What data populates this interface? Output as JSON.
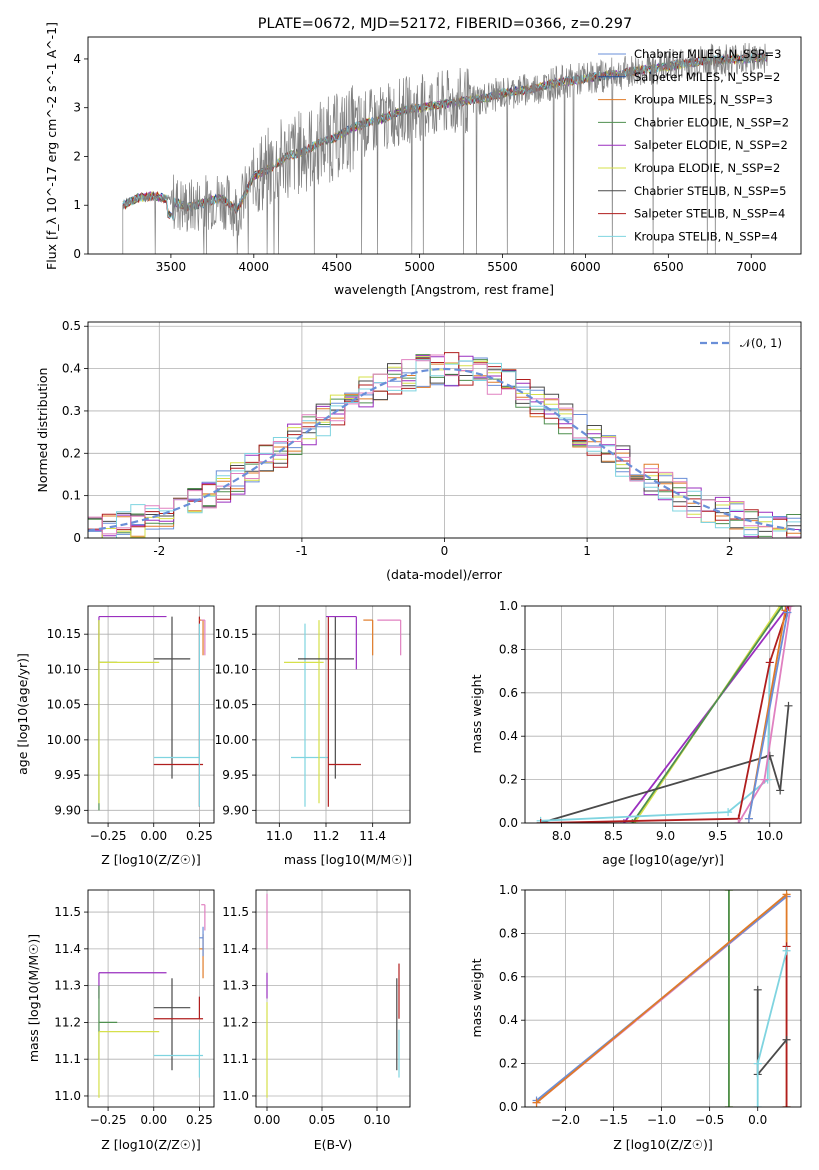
{
  "chart_data": [
    {
      "type": "line",
      "title": "PLATE=0672, MJD=52172, FIBERID=0366, z=0.297",
      "xlabel": "wavelength [Angstrom, rest frame]",
      "ylabel": "Flux [f_λ 10^-17 erg cm^-2 s^-1 A^-1]",
      "xlim": [
        3000,
        7300
      ],
      "ylim": [
        0,
        4.45
      ],
      "xticks": [
        3500,
        4000,
        4500,
        5000,
        5500,
        6000,
        6500,
        7000
      ],
      "yticks": [
        0,
        1,
        2,
        3,
        4
      ],
      "grid": false,
      "legend_position": "top-right",
      "data_spectrum": {
        "name": "data",
        "color": "#808080",
        "x": [
          3210,
          3300,
          3400,
          3500,
          3600,
          3700,
          3800,
          3900,
          4000,
          4100,
          4200,
          4300,
          4400,
          4500,
          4600,
          4700,
          4800,
          4900,
          5000,
          5100,
          5200,
          5300,
          5400,
          5500,
          5600,
          5700,
          5800,
          5900,
          6000,
          6100,
          6200,
          6300,
          6400,
          6500,
          6600,
          6700,
          6800,
          6900,
          7000,
          7100
        ],
        "y": [
          1.0,
          1.15,
          1.2,
          1.1,
          0.95,
          1.05,
          1.15,
          0.9,
          1.6,
          1.75,
          2.0,
          2.1,
          2.3,
          2.4,
          2.6,
          2.7,
          2.8,
          2.95,
          3.0,
          3.05,
          3.1,
          3.15,
          3.2,
          3.3,
          3.35,
          3.4,
          3.5,
          3.55,
          3.6,
          3.65,
          3.7,
          3.75,
          3.8,
          3.85,
          3.9,
          3.95,
          3.98,
          4.0,
          4.0,
          4.05
        ]
      },
      "series": [
        {
          "name": "Chabrier MILES, N_SSP=3",
          "color": "#6a8fd8"
        },
        {
          "name": "Salpeter MILES, N_SSP=2",
          "color": "#1f4e9a"
        },
        {
          "name": "Kroupa MILES, N_SSP=3",
          "color": "#e07b28"
        },
        {
          "name": "Chabrier ELODIE, N_SSP=2",
          "color": "#4f8f4f"
        },
        {
          "name": "Salpeter ELODIE, N_SSP=2",
          "color": "#9a2fbf"
        },
        {
          "name": "Kroupa ELODIE, N_SSP=2",
          "color": "#d6e04a"
        },
        {
          "name": "Chabrier STELIB, N_SSP=5",
          "color": "#4a4a4a"
        },
        {
          "name": "Salpeter STELIB, N_SSP=4",
          "color": "#b01e1e"
        },
        {
          "name": "Kroupa STELIB, N_SSP=4",
          "color": "#7fd4e0"
        }
      ]
    },
    {
      "type": "line",
      "xlabel": "(data-model)/error",
      "ylabel": "Normed distribution",
      "xlim": [
        -2.5,
        2.5
      ],
      "ylim": [
        0,
        0.51
      ],
      "xticks": [
        -2,
        -1,
        0,
        1,
        2
      ],
      "yticks": [
        0.0,
        0.1,
        0.2,
        0.3,
        0.4,
        0.5
      ],
      "grid": true,
      "legend_position": "top-right",
      "legend": [
        "𝒩(0, 1)"
      ],
      "gaussian": {
        "mu": 0,
        "sigma": 1,
        "color": "#6a8fd8",
        "style": "dashed"
      },
      "histogram_bin_width": 0.1,
      "histogram_colors": [
        "#6a8fd8",
        "#e07b28",
        "#4f8f4f",
        "#9a2fbf",
        "#d6e04a",
        "#4a4a4a",
        "#b01e1e",
        "#7fd4e0",
        "#e080c0"
      ]
    },
    {
      "type": "scatter",
      "xlabel": "Z [log10(Z/Z☉)]",
      "ylabel": "age  [log10(age/yr)]",
      "xlim": [
        -0.36,
        0.33
      ],
      "ylim": [
        9.882,
        10.19
      ],
      "xticks": [
        -0.25,
        0.0,
        0.25
      ],
      "xticklabels": [
        "−0.25",
        "0.00",
        "0.25"
      ],
      "yticks": [
        9.9,
        9.95,
        10.0,
        10.05,
        10.1,
        10.15
      ],
      "yticklabels": [
        "9.90",
        "9.95",
        "10.00",
        "10.05",
        "10.10",
        "10.15"
      ],
      "grid": true,
      "errorbars": [
        {
          "color": "#9a2fbf",
          "x": -0.3,
          "y": 10.175,
          "xerr": [
            0,
            0.37
          ],
          "yerr": [
            0.075,
            0
          ]
        },
        {
          "color": "#4f8f4f",
          "x": -0.3,
          "y": 10.11,
          "xerr": [
            0,
            0.1
          ],
          "yerr": [
            0.21,
            0.06
          ]
        },
        {
          "color": "#d6e04a",
          "x": -0.3,
          "y": 10.11,
          "xerr": [
            0,
            0.33
          ],
          "yerr": [
            0.2,
            0.06
          ]
        },
        {
          "color": "#4a4a4a",
          "x": 0.1,
          "y": 10.115,
          "xerr": [
            0.1,
            0.1
          ],
          "yerr": [
            0.17,
            0.06
          ]
        },
        {
          "color": "#b01e1e",
          "x": 0.25,
          "y": 9.965,
          "xerr": [
            0.25,
            0.02
          ],
          "yerr": [
            0.06,
            0.21
          ]
        },
        {
          "color": "#7fd4e0",
          "x": 0.25,
          "y": 9.975,
          "xerr": [
            0.25,
            0.0
          ],
          "yerr": [
            0.07,
            0.19
          ]
        },
        {
          "color": "#e07b28",
          "x": 0.27,
          "y": 10.17,
          "xerr": [
            0.02,
            0.0
          ],
          "yerr": [
            0.05,
            0.0
          ]
        },
        {
          "color": "#e080c0",
          "x": 0.28,
          "y": 10.17,
          "xerr": [
            0.02,
            0.0
          ],
          "yerr": [
            0.05,
            0.0
          ]
        }
      ]
    },
    {
      "type": "scatter",
      "xlabel": "mass [log10(M/M☉)]",
      "ylim": [
        9.882,
        10.19
      ],
      "xlim": [
        10.9,
        11.56
      ],
      "xticks": [
        11.0,
        11.2,
        11.4
      ],
      "xticklabels": [
        "11.0",
        "11.2",
        "11.4"
      ],
      "yticks": [
        9.9,
        9.95,
        10.0,
        10.05,
        10.1,
        10.15
      ],
      "yticklabels": [
        "9.90",
        "9.95",
        "10.00",
        "10.05",
        "10.10",
        "10.15"
      ],
      "grid": true,
      "errorbars": [
        {
          "color": "#7fd4e0",
          "x": 11.11,
          "y": 9.975,
          "xerr": [
            0.06,
            0.1
          ],
          "yerr": [
            0.07,
            0.19
          ]
        },
        {
          "color": "#d6e04a",
          "x": 11.17,
          "y": 10.11,
          "xerr": [
            0.15,
            0.02
          ],
          "yerr": [
            0.2,
            0.06
          ]
        },
        {
          "color": "#4a4a4a",
          "x": 11.24,
          "y": 10.115,
          "xerr": [
            0.16,
            0.08
          ],
          "yerr": [
            0.17,
            0.06
          ]
        },
        {
          "color": "#b01e1e",
          "x": 11.21,
          "y": 9.965,
          "xerr": [
            0.0,
            0.14
          ],
          "yerr": [
            0.06,
            0.21
          ]
        },
        {
          "color": "#9a2fbf",
          "x": 11.33,
          "y": 10.175,
          "xerr": [
            0.13,
            0.0
          ],
          "yerr": [
            0.075,
            0
          ]
        },
        {
          "color": "#e07b28",
          "x": 11.4,
          "y": 10.17,
          "xerr": [
            0.04,
            0.0
          ],
          "yerr": [
            0.05,
            0.0
          ]
        },
        {
          "color": "#e080c0",
          "x": 11.52,
          "y": 10.17,
          "xerr": [
            0.1,
            0.0
          ],
          "yerr": [
            0.05,
            0.0
          ]
        }
      ]
    },
    {
      "type": "line",
      "xlabel": "age  [log10(age/yr)]",
      "ylabel": "mass weight",
      "xlim": [
        7.65,
        10.3
      ],
      "ylim": [
        0,
        1.0
      ],
      "xticks": [
        8.0,
        8.5,
        9.0,
        9.5,
        10.0
      ],
      "xticklabels": [
        "8.0",
        "8.5",
        "9.0",
        "9.5",
        "10.0"
      ],
      "yticks": [
        0.0,
        0.2,
        0.4,
        0.6,
        0.8,
        1.0
      ],
      "yticklabels": [
        "0.0",
        "0.2",
        "0.4",
        "0.6",
        "0.8",
        "1.0"
      ],
      "grid": true,
      "series": [
        {
          "color": "#9a2fbf",
          "x": [
            8.6,
            10.18
          ],
          "y": [
            0.0,
            1.0
          ]
        },
        {
          "color": "#d6e04a",
          "x": [
            8.7,
            10.1
          ],
          "y": [
            0.0,
            1.0
          ]
        },
        {
          "color": "#4f8f4f",
          "x": [
            8.68,
            10.12
          ],
          "y": [
            0.0,
            1.0
          ]
        },
        {
          "color": "#4a4a4a",
          "x": [
            7.8,
            10.0,
            10.1,
            10.18
          ],
          "y": [
            0.0,
            0.31,
            0.15,
            0.54
          ]
        },
        {
          "color": "#7fd4e0",
          "x": [
            7.8,
            9.6,
            9.98,
            10.0
          ],
          "y": [
            0.01,
            0.05,
            0.2,
            0.74
          ]
        },
        {
          "color": "#b01e1e",
          "x": [
            7.8,
            9.7,
            10.0,
            10.18
          ],
          "y": [
            0.0,
            0.02,
            0.74,
            1.0
          ]
        },
        {
          "color": "#e080c0",
          "x": [
            9.7,
            9.95,
            10.2
          ],
          "y": [
            0.0,
            0.2,
            1.0
          ]
        },
        {
          "color": "#e07b28",
          "x": [
            9.8,
            10.15
          ],
          "y": [
            0.02,
            0.98
          ]
        },
        {
          "color": "#6a8fd8",
          "x": [
            9.8,
            10.17
          ],
          "y": [
            0.02,
            0.97
          ]
        }
      ]
    },
    {
      "type": "scatter",
      "xlabel": "Z [log10(Z/Z☉)]",
      "ylabel": "mass [log10(M/M☉)]",
      "xlim": [
        -0.36,
        0.33
      ],
      "ylim": [
        10.97,
        11.56
      ],
      "xticks": [
        -0.25,
        0.0,
        0.25
      ],
      "xticklabels": [
        "−0.25",
        "0.00",
        "0.25"
      ],
      "yticks": [
        11.0,
        11.1,
        11.2,
        11.3,
        11.4,
        11.5
      ],
      "yticklabels": [
        "11.0",
        "11.1",
        "11.2",
        "11.3",
        "11.4",
        "11.5"
      ],
      "grid": true,
      "errorbars": [
        {
          "color": "#9a2fbf",
          "x": -0.3,
          "y": 11.335,
          "xerr": [
            0,
            0.37
          ],
          "yerr": [
            0.07,
            0.0
          ]
        },
        {
          "color": "#4f8f4f",
          "x": -0.3,
          "y": 11.2,
          "xerr": [
            0,
            0.1
          ],
          "yerr": [
            0.1,
            0.1
          ]
        },
        {
          "color": "#d6e04a",
          "x": -0.3,
          "y": 11.175,
          "xerr": [
            0,
            0.33
          ],
          "yerr": [
            0.18,
            0.0
          ]
        },
        {
          "color": "#4a4a4a",
          "x": 0.1,
          "y": 11.24,
          "xerr": [
            0.1,
            0.1
          ],
          "yerr": [
            0.17,
            0.08
          ]
        },
        {
          "color": "#b01e1e",
          "x": 0.25,
          "y": 11.21,
          "xerr": [
            0.25,
            0.02
          ],
          "yerr": [
            0.0,
            0.06
          ]
        },
        {
          "color": "#7fd4e0",
          "x": 0.25,
          "y": 11.11,
          "xerr": [
            0.25,
            0.02
          ],
          "yerr": [
            0.06,
            0.07
          ]
        },
        {
          "color": "#e07b28",
          "x": 0.27,
          "y": 11.4,
          "xerr": [
            0.02,
            0.0
          ],
          "yerr": [
            0.08,
            0.04
          ]
        },
        {
          "color": "#6a8fd8",
          "x": 0.27,
          "y": 11.43,
          "xerr": [
            0.02,
            0.0
          ],
          "yerr": [
            0.05,
            0.03
          ]
        },
        {
          "color": "#e080c0",
          "x": 0.28,
          "y": 11.52,
          "xerr": [
            0.02,
            0.0
          ],
          "yerr": [
            0.07,
            0.0
          ]
        }
      ]
    },
    {
      "type": "scatter",
      "xlabel": "E(B-V)",
      "xlim": [
        -0.01,
        0.13
      ],
      "ylim": [
        10.97,
        11.56
      ],
      "xticks": [
        0.0,
        0.05,
        0.1
      ],
      "xticklabels": [
        "0.00",
        "0.05",
        "0.10"
      ],
      "yticks": [
        11.0,
        11.1,
        11.2,
        11.3,
        11.4,
        11.5
      ],
      "yticklabels": [
        "11.0",
        "11.1",
        "11.2",
        "11.3",
        "11.4",
        "11.5"
      ],
      "grid": true,
      "errorbars": [
        {
          "color": "#e080c0",
          "x": 0.0,
          "y": 11.5,
          "xerr": [
            0,
            0
          ],
          "yerr": [
            0.1,
            0.05
          ]
        },
        {
          "color": "#9a2fbf",
          "x": 0.0,
          "y": 11.335,
          "xerr": [
            0,
            0
          ],
          "yerr": [
            0.07,
            0.0
          ]
        },
        {
          "color": "#d6e04a",
          "x": 0.0,
          "y": 11.175,
          "xerr": [
            0,
            0
          ],
          "yerr": [
            0.18,
            0.08
          ]
        },
        {
          "color": "#4a4a4a",
          "x": 0.118,
          "y": 11.24,
          "xerr": [
            0,
            0
          ],
          "yerr": [
            0.17,
            0.08
          ]
        },
        {
          "color": "#b01e1e",
          "x": 0.12,
          "y": 11.21,
          "xerr": [
            0,
            0
          ],
          "yerr": [
            0.0,
            0.15
          ]
        },
        {
          "color": "#7fd4e0",
          "x": 0.12,
          "y": 11.11,
          "xerr": [
            0,
            0
          ],
          "yerr": [
            0.06,
            0.07
          ]
        }
      ]
    },
    {
      "type": "line",
      "xlabel": "Z [log10(Z/Z☉)]",
      "ylabel": "mass weight",
      "xlim": [
        -2.42,
        0.45
      ],
      "ylim": [
        0,
        1.0
      ],
      "xticks": [
        -2.0,
        -1.5,
        -1.0,
        -0.5,
        0.0
      ],
      "xticklabels": [
        "−2.0",
        "−1.5",
        "−1.0",
        "−0.5",
        "0.0"
      ],
      "yticks": [
        0.0,
        0.2,
        0.4,
        0.6,
        0.8,
        1.0
      ],
      "yticklabels": [
        "0.0",
        "0.2",
        "0.4",
        "0.6",
        "0.8",
        "1.0"
      ],
      "grid": true,
      "series": [
        {
          "color": "#d6e04a",
          "x": [
            -0.3,
            -0.3
          ],
          "y": [
            0.0,
            1.0
          ]
        },
        {
          "color": "#4f8f4f",
          "x": [
            -0.3,
            -0.3
          ],
          "y": [
            0.0,
            1.0
          ]
        },
        {
          "color": "#e080c0",
          "x": [
            -2.3,
            0.3
          ],
          "y": [
            0.02,
            0.97
          ]
        },
        {
          "color": "#6a8fd8",
          "x": [
            -2.3,
            0.3
          ],
          "y": [
            0.03,
            0.97
          ]
        },
        {
          "color": "#e07b28",
          "x": [
            -2.3,
            0.3,
            0.3
          ],
          "y": [
            0.02,
            0.98,
            0.0
          ]
        },
        {
          "color": "#b01e1e",
          "x": [
            0.3,
            0.3
          ],
          "y": [
            0.0,
            0.74
          ]
        },
        {
          "color": "#4a4a4a",
          "x": [
            0.0,
            0.0,
            0.3
          ],
          "y": [
            0.54,
            0.15,
            0.31
          ]
        },
        {
          "color": "#7fd4e0",
          "x": [
            0.0,
            0.0,
            0.3
          ],
          "y": [
            0.0,
            0.2,
            0.72
          ]
        }
      ]
    }
  ]
}
